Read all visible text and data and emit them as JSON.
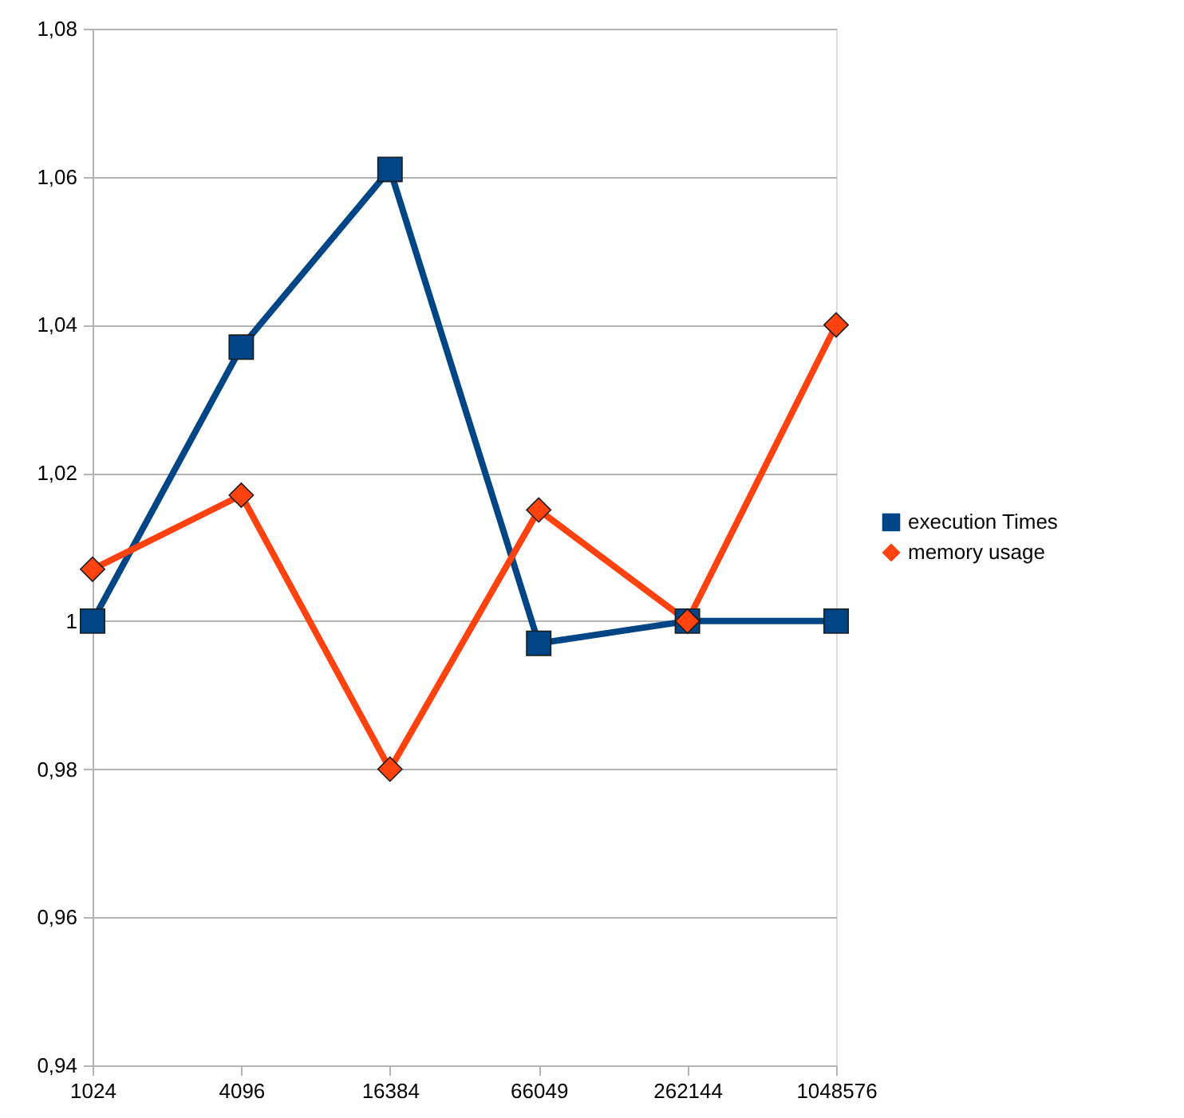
{
  "chart_data": {
    "type": "line",
    "categories": [
      "1024",
      "4096",
      "16384",
      "66049",
      "262144",
      "1048576"
    ],
    "series": [
      {
        "name": "execution Times",
        "color": "#004586",
        "marker": "square",
        "values": [
          1.0,
          1.037,
          1.061,
          0.997,
          1.0,
          1.0
        ]
      },
      {
        "name": "memory usage",
        "color": "#ff420e",
        "marker": "diamond",
        "values": [
          1.007,
          1.017,
          0.98,
          1.015,
          1.0,
          1.04
        ]
      }
    ],
    "ylim": [
      0.94,
      1.08
    ],
    "yticks": [
      {
        "value": 0.94,
        "label": "0,94"
      },
      {
        "value": 0.96,
        "label": "0,96"
      },
      {
        "value": 0.98,
        "label": "0,98"
      },
      1,
      {
        "value": 1.02,
        "label": "1,02"
      },
      {
        "value": 1.04,
        "label": "1,04"
      },
      {
        "value": 1.06,
        "label": "1,06"
      },
      {
        "value": 1.08,
        "label": "1,08"
      }
    ],
    "grid": "y",
    "legend": "right",
    "line_style": "solid"
  }
}
